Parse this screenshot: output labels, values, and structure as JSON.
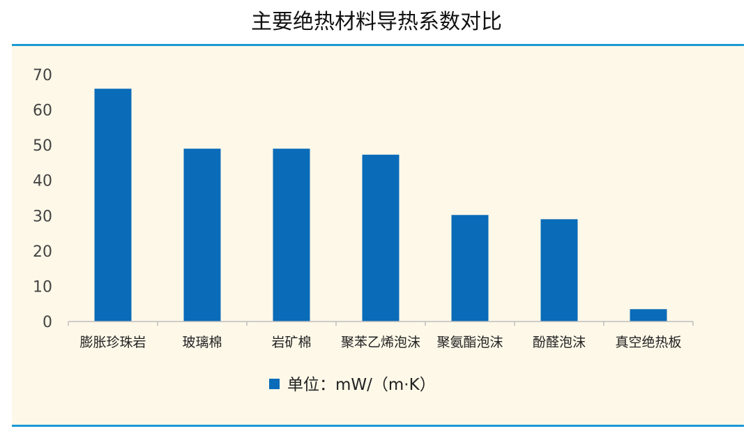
{
  "chart_data": {
    "type": "bar",
    "title": "主要绝热材料导热系数对比",
    "categories": [
      "膨胀珍珠岩",
      "玻璃棉",
      "岩矿棉",
      "聚苯乙烯泡沫",
      "聚氨酯泡沫",
      "酚醛泡沫",
      "真空绝热板"
    ],
    "series": [
      {
        "name": "单位：mW/（m·K）",
        "values": [
          66,
          49,
          49,
          47.3,
          30.2,
          29,
          3.5
        ]
      }
    ],
    "ylim": [
      0,
      70
    ],
    "yticks": [
      "0",
      "10",
      "20",
      "30",
      "40",
      "50",
      "60",
      "70"
    ],
    "grid": false,
    "legend": "bottom-center",
    "bar_color": "#0a6bb8",
    "background_color": "#fdf8e8",
    "rule_color": "#1a9ad6"
  }
}
